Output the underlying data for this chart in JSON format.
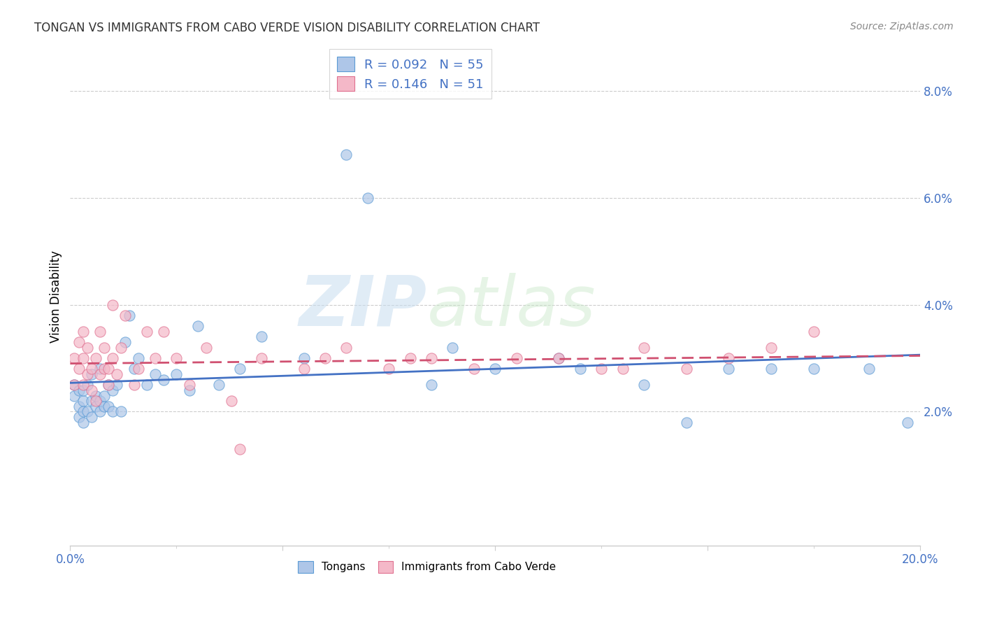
{
  "title": "TONGAN VS IMMIGRANTS FROM CABO VERDE VISION DISABILITY CORRELATION CHART",
  "source": "Source: ZipAtlas.com",
  "ylabel": "Vision Disability",
  "xlim": [
    0.0,
    0.2
  ],
  "ylim": [
    -0.005,
    0.088
  ],
  "yticks": [
    0.02,
    0.04,
    0.06,
    0.08
  ],
  "ytick_labels": [
    "2.0%",
    "4.0%",
    "6.0%",
    "8.0%"
  ],
  "legend_r1": "R = 0.092",
  "legend_n1": "N = 55",
  "legend_r2": "R = 0.146",
  "legend_n2": "N = 51",
  "color_tongan_fill": "#aec6e8",
  "color_tongan_edge": "#5b9bd5",
  "color_cabo_fill": "#f4b8c8",
  "color_cabo_edge": "#e07090",
  "color_tongan_line": "#4472c4",
  "color_cabo_line": "#d05070",
  "watermark_zip": "ZIP",
  "watermark_atlas": "atlas",
  "tongan_x": [
    0.001,
    0.001,
    0.002,
    0.002,
    0.002,
    0.003,
    0.003,
    0.003,
    0.003,
    0.004,
    0.004,
    0.005,
    0.005,
    0.005,
    0.006,
    0.006,
    0.007,
    0.007,
    0.007,
    0.008,
    0.008,
    0.009,
    0.009,
    0.01,
    0.01,
    0.011,
    0.012,
    0.013,
    0.014,
    0.015,
    0.016,
    0.018,
    0.02,
    0.022,
    0.025,
    0.028,
    0.03,
    0.035,
    0.04,
    0.045,
    0.055,
    0.065,
    0.07,
    0.085,
    0.09,
    0.1,
    0.115,
    0.12,
    0.135,
    0.145,
    0.155,
    0.165,
    0.175,
    0.188,
    0.197
  ],
  "tongan_y": [
    0.025,
    0.023,
    0.024,
    0.021,
    0.019,
    0.022,
    0.02,
    0.018,
    0.024,
    0.02,
    0.025,
    0.022,
    0.019,
    0.027,
    0.021,
    0.023,
    0.02,
    0.022,
    0.028,
    0.021,
    0.023,
    0.021,
    0.025,
    0.02,
    0.024,
    0.025,
    0.02,
    0.033,
    0.038,
    0.028,
    0.03,
    0.025,
    0.027,
    0.026,
    0.027,
    0.024,
    0.036,
    0.025,
    0.028,
    0.034,
    0.03,
    0.068,
    0.06,
    0.025,
    0.032,
    0.028,
    0.03,
    0.028,
    0.025,
    0.018,
    0.028,
    0.028,
    0.028,
    0.028,
    0.018
  ],
  "cabo_x": [
    0.001,
    0.001,
    0.002,
    0.002,
    0.003,
    0.003,
    0.003,
    0.004,
    0.004,
    0.005,
    0.005,
    0.006,
    0.006,
    0.007,
    0.007,
    0.008,
    0.008,
    0.009,
    0.009,
    0.01,
    0.01,
    0.011,
    0.012,
    0.013,
    0.015,
    0.016,
    0.018,
    0.02,
    0.022,
    0.025,
    0.028,
    0.032,
    0.038,
    0.045,
    0.055,
    0.065,
    0.075,
    0.085,
    0.095,
    0.105,
    0.115,
    0.125,
    0.135,
    0.145,
    0.155,
    0.165,
    0.175,
    0.13,
    0.08,
    0.06,
    0.04
  ],
  "cabo_y": [
    0.025,
    0.03,
    0.028,
    0.033,
    0.025,
    0.03,
    0.035,
    0.027,
    0.032,
    0.024,
    0.028,
    0.022,
    0.03,
    0.035,
    0.027,
    0.028,
    0.032,
    0.025,
    0.028,
    0.03,
    0.04,
    0.027,
    0.032,
    0.038,
    0.025,
    0.028,
    0.035,
    0.03,
    0.035,
    0.03,
    0.025,
    0.032,
    0.022,
    0.03,
    0.028,
    0.032,
    0.028,
    0.03,
    0.028,
    0.03,
    0.03,
    0.028,
    0.032,
    0.028,
    0.03,
    0.032,
    0.035,
    0.028,
    0.03,
    0.03,
    0.013
  ]
}
